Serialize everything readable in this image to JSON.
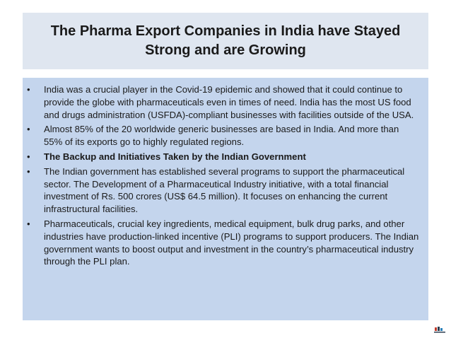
{
  "title": "The Pharma Export Companies in India have Stayed Strong and are Growing",
  "bullets": [
    {
      "text": "India was a crucial player in the Covid-19 epidemic and showed that it could continue to provide the globe with pharmaceuticals even in times of need. India has the most US food and drugs administration (USFDA)-compliant businesses with facilities outside of the USA.",
      "bold": false
    },
    {
      "text": "Almost 85% of the 20 worldwide generic businesses are based in India. And more than 55% of its exports go to highly regulated regions.",
      "bold": false
    },
    {
      "text": "The Backup and Initiatives Taken by the Indian Government",
      "bold": true
    },
    {
      "text": "The Indian government has established several programs to support the pharmaceutical sector. The Development of a Pharmaceutical Industry initiative, with a total financial investment of Rs. 500 crores (US$ 64.5 million). It focuses on enhancing the current infrastructural facilities.",
      "bold": false
    },
    {
      "text": "Pharmaceuticals, crucial key ingredients, medical equipment, bulk drug parks, and other industries have production-linked incentive (PLI) programs to support producers. The Indian government wants to boost output and investment in the country’s pharmaceutical industry through the PLI plan.",
      "bold": false
    }
  ],
  "bullet_glyph": "•",
  "colors": {
    "title_background": "#dfe6f0",
    "body_background": "#c4d5ed",
    "text": "#1a1a1a"
  },
  "logo": {
    "icon": "company-logo-icon"
  }
}
